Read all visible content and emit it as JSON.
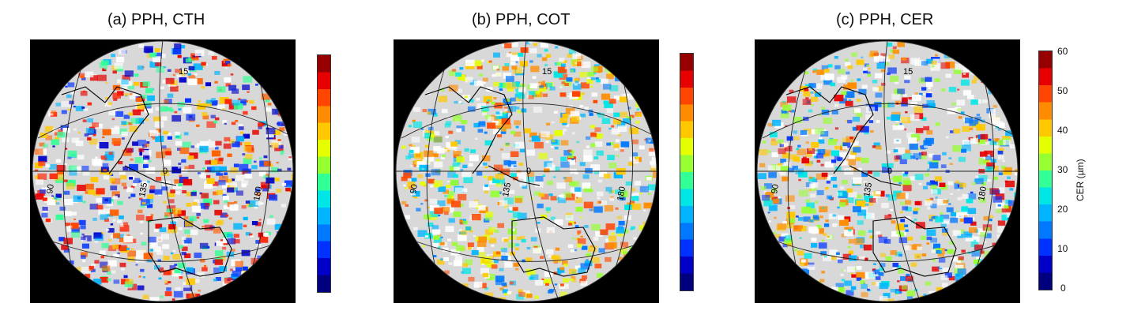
{
  "panels": [
    {
      "title": "(a) PPH,  CTH"
    },
    {
      "title": "(b) PPH,  COT"
    },
    {
      "title": "(c) PPH,  CER"
    }
  ],
  "map_labels": {
    "lat_north": "15",
    "equator": "0",
    "lon_west": "90",
    "lon_mid": "135",
    "lon_east": "180"
  },
  "colorbar": {
    "title": "CER (µm)",
    "ticks": [
      "60",
      "50",
      "40",
      "30",
      "20",
      "10",
      "0"
    ],
    "colors": [
      "#00007f",
      "#0000c8",
      "#0032ff",
      "#0078ff",
      "#00b4ff",
      "#00e6e6",
      "#32ff96",
      "#96ff32",
      "#e6ff00",
      "#ffc800",
      "#ff8c00",
      "#ff4600",
      "#e60000",
      "#960000"
    ]
  }
}
